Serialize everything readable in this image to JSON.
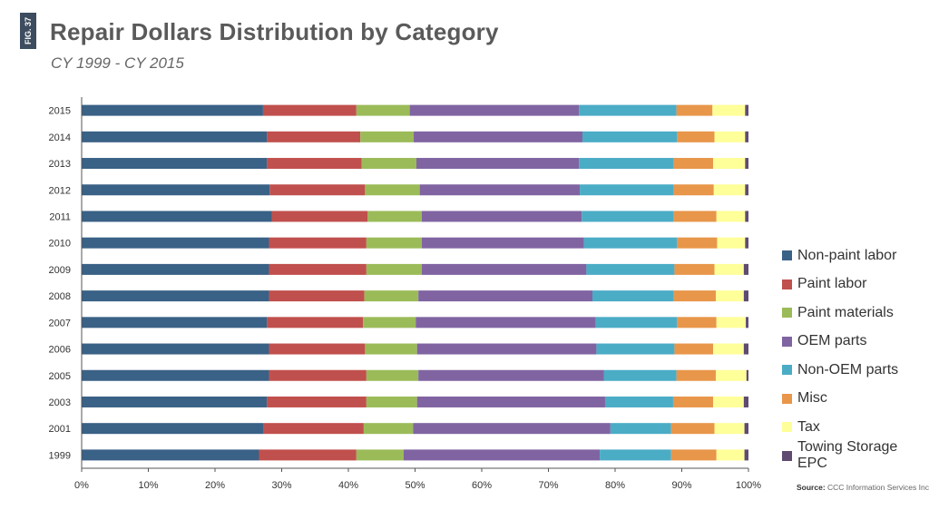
{
  "figure": {
    "tag": "FIG. 37"
  },
  "source": {
    "label": "Source:",
    "text": "CCC Information Services Inc."
  },
  "chart_data": {
    "type": "bar",
    "orientation": "horizontal",
    "stacked": true,
    "normalized": true,
    "title": "Repair Dollars Distribution by Category",
    "subtitle": "CY 1999 - CY 2015",
    "xlabel": "",
    "ylabel": "",
    "xlim": [
      0,
      100
    ],
    "x_ticks": [
      "0%",
      "10%",
      "20%",
      "30%",
      "40%",
      "50%",
      "60%",
      "70%",
      "80%",
      "90%",
      "100%"
    ],
    "grid": false,
    "legend": "right",
    "categories": [
      "2015",
      "2014",
      "2013",
      "2012",
      "2011",
      "2010",
      "2009",
      "2008",
      "2007",
      "2006",
      "2005",
      "2003",
      "2001",
      "1999"
    ],
    "series": [
      {
        "name": "Non-paint labor",
        "color": "#3a6186",
        "values": [
          27.2,
          27.8,
          27.8,
          28.2,
          28.5,
          28.1,
          28.1,
          28.1,
          27.8,
          28.1,
          28.1,
          27.8,
          27.3,
          26.6
        ]
      },
      {
        "name": "Paint labor",
        "color": "#c0504d",
        "values": [
          14.0,
          14.0,
          14.2,
          14.3,
          14.4,
          14.6,
          14.6,
          14.3,
          14.4,
          14.4,
          14.6,
          14.9,
          15.0,
          14.6
        ]
      },
      {
        "name": "Paint materials",
        "color": "#9bbb59",
        "values": [
          8.0,
          8.0,
          8.2,
          8.2,
          8.1,
          8.3,
          8.3,
          8.1,
          7.9,
          7.8,
          7.8,
          7.6,
          7.4,
          7.1
        ]
      },
      {
        "name": "OEM parts",
        "color": "#8064a2",
        "values": [
          25.4,
          25.3,
          24.4,
          24.0,
          24.0,
          24.3,
          24.7,
          26.1,
          27.0,
          26.9,
          27.8,
          28.2,
          29.6,
          29.4
        ]
      },
      {
        "name": "Non-OEM parts",
        "color": "#4bacc6",
        "values": [
          14.6,
          14.2,
          14.2,
          14.1,
          13.8,
          14.0,
          13.2,
          12.2,
          12.2,
          11.7,
          10.9,
          10.2,
          9.1,
          10.7
        ]
      },
      {
        "name": "Misc",
        "color": "#e8964a",
        "values": [
          5.4,
          5.6,
          5.9,
          6.0,
          6.4,
          6.0,
          6.0,
          6.3,
          5.9,
          5.8,
          5.9,
          6.0,
          6.5,
          6.8
        ]
      },
      {
        "name": "Tax",
        "color": "#ffff99",
        "values": [
          4.9,
          4.6,
          4.8,
          4.7,
          4.3,
          4.2,
          4.4,
          4.2,
          4.4,
          4.6,
          4.6,
          4.6,
          4.5,
          4.2
        ]
      },
      {
        "name": "Towing Storage EPC",
        "color": "#5f4b72",
        "values": [
          0.5,
          0.5,
          0.5,
          0.5,
          0.5,
          0.5,
          0.7,
          0.7,
          0.4,
          0.7,
          0.3,
          0.7,
          0.6,
          0.6
        ]
      }
    ]
  }
}
